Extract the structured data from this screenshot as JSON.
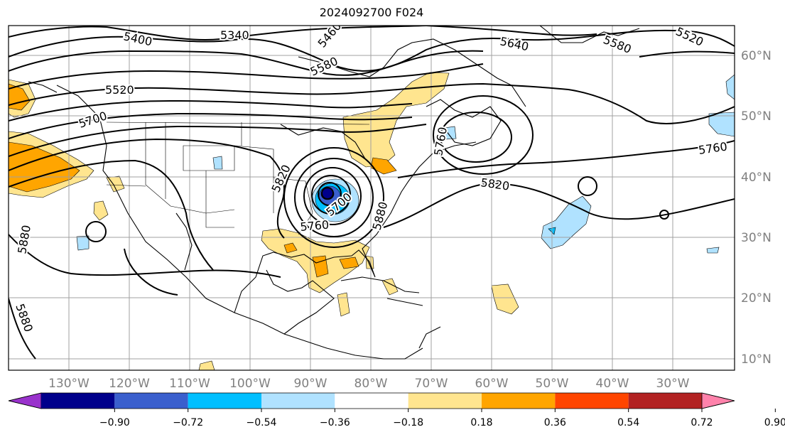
{
  "title": "2024092700 F024",
  "longitude_labels": [
    "130°W",
    "120°W",
    "110°W",
    "100°W",
    "90°W",
    "80°W",
    "70°W",
    "60°W",
    "50°W",
    "40°W",
    "30°W"
  ],
  "latitude_labels": [
    "60°N",
    "50°N",
    "40°N",
    "30°N",
    "20°N",
    "10°N"
  ],
  "colorbar": {
    "colors": [
      "#9932cc",
      "#00008b",
      "#3a5fcd",
      "#00bfff",
      "#b0e2ff",
      "#ffffff",
      "#ffe58f",
      "#ffa500",
      "#ff4500",
      "#b22222",
      "#ff82ab"
    ],
    "tick_labels": [
      "−0.90",
      "−0.72",
      "−0.54",
      "−0.36",
      "−0.18",
      "0.18",
      "0.36",
      "0.54",
      "0.72",
      "0.90"
    ]
  },
  "contour_labels": [
    "5400",
    "5340",
    "5460",
    "5580",
    "5640",
    "5580",
    "5520",
    "5520",
    "5700",
    "5760",
    "5820",
    "5820",
    "5760",
    "5880",
    "5880",
    "5880",
    "5700",
    "5760"
  ],
  "colors": {
    "contour": "#000000",
    "grid": "#a0a0a0",
    "tick_label": "#808080"
  }
}
